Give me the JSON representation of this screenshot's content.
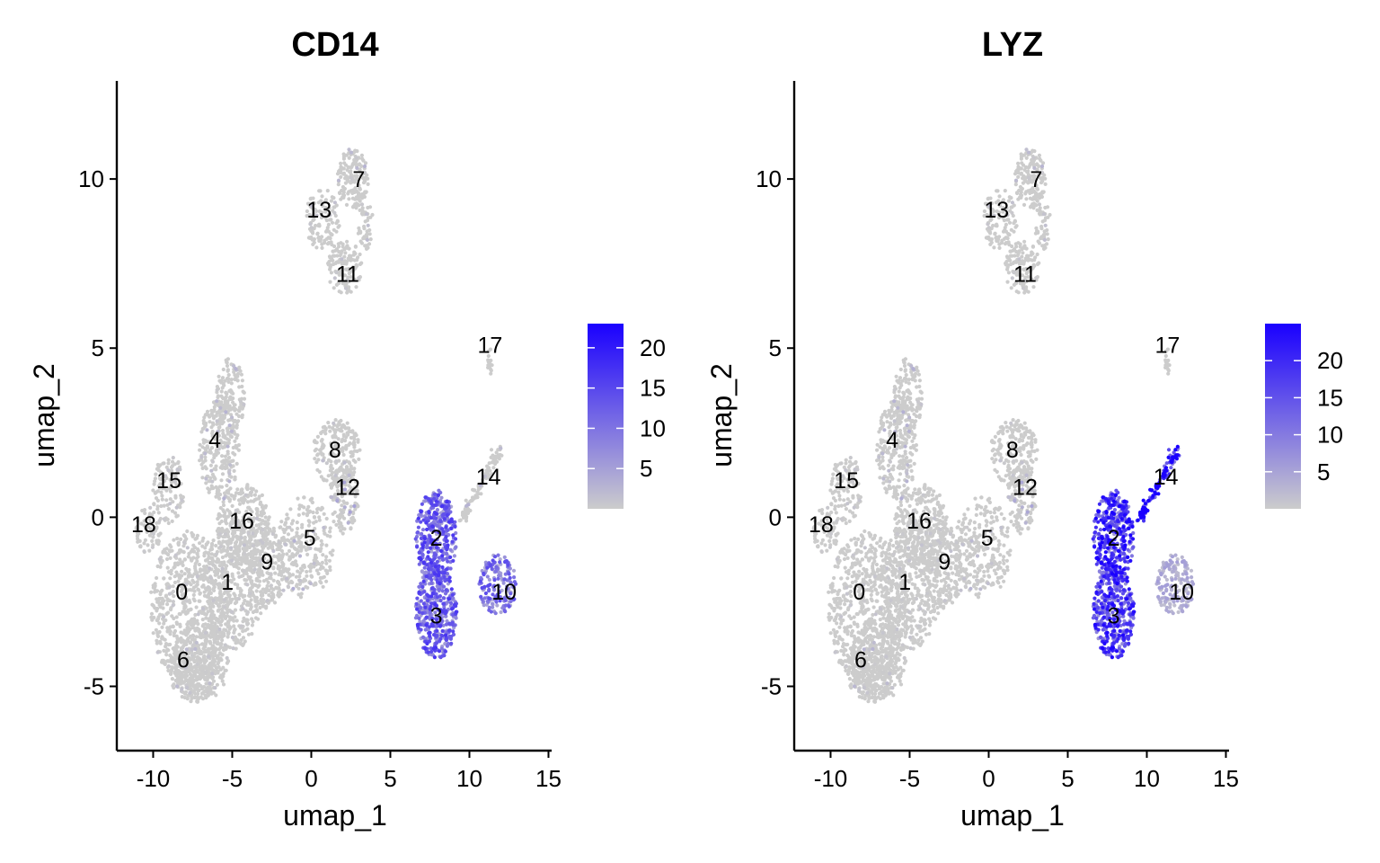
{
  "chart_data": [
    {
      "type": "scatter",
      "title": "CD14",
      "xlabel": "umap_1",
      "ylabel": "umap_2",
      "xlim": [
        -12.3,
        15.2
      ],
      "ylim": [
        -6.9,
        12.9
      ],
      "xticks": [
        -10,
        -5,
        0,
        5,
        10,
        15
      ],
      "yticks": [
        -5,
        0,
        5,
        10
      ],
      "grid": false,
      "legend": "right",
      "colorbar": {
        "ticks": [
          5,
          10,
          15,
          20
        ],
        "min": 0,
        "max": 23,
        "low_color": "#cccccc",
        "high_color": "#1a00ff"
      },
      "cluster_labels": [
        {
          "label": "0",
          "x": -8.2,
          "y": -2.2
        },
        {
          "label": "1",
          "x": -5.3,
          "y": -1.9
        },
        {
          "label": "2",
          "x": 7.9,
          "y": -0.6
        },
        {
          "label": "3",
          "x": 7.9,
          "y": -2.9
        },
        {
          "label": "4",
          "x": -6.1,
          "y": 2.3
        },
        {
          "label": "5",
          "x": -0.1,
          "y": -0.6
        },
        {
          "label": "6",
          "x": -8.1,
          "y": -4.2
        },
        {
          "label": "7",
          "x": 3.0,
          "y": 10.0
        },
        {
          "label": "8",
          "x": 1.5,
          "y": 2.0
        },
        {
          "label": "9",
          "x": -2.8,
          "y": -1.3
        },
        {
          "label": "10",
          "x": 12.2,
          "y": -2.2
        },
        {
          "label": "11",
          "x": 2.3,
          "y": 7.2
        },
        {
          "label": "12",
          "x": 2.3,
          "y": 0.9
        },
        {
          "label": "13",
          "x": 0.5,
          "y": 9.1
        },
        {
          "label": "14",
          "x": 11.2,
          "y": 1.2
        },
        {
          "label": "15",
          "x": -9.0,
          "y": 1.1
        },
        {
          "label": "16",
          "x": -4.4,
          "y": -0.1
        },
        {
          "label": "17",
          "x": 11.3,
          "y": 5.1
        },
        {
          "label": "18",
          "x": -10.6,
          "y": -0.2
        }
      ],
      "expression_by_cluster": {
        "0": 0.3,
        "1": 0.3,
        "2": 10.5,
        "3": 10.5,
        "4": 0.8,
        "5": 1.0,
        "6": 0.6,
        "7": 0.8,
        "8": 0.5,
        "9": 0.4,
        "10": 9.0,
        "11": 0.5,
        "12": 1.5,
        "13": 0.4,
        "14": 1.0,
        "15": 0.3,
        "16": 0.3,
        "17": 0.2,
        "18": 0.2
      }
    },
    {
      "type": "scatter",
      "title": "LYZ",
      "xlabel": "umap_1",
      "ylabel": "umap_2",
      "xlim": [
        -12.3,
        15.2
      ],
      "ylim": [
        -6.9,
        12.9
      ],
      "xticks": [
        -10,
        -5,
        0,
        5,
        10,
        15
      ],
      "yticks": [
        -5,
        0,
        5,
        10
      ],
      "grid": false,
      "legend": "right",
      "colorbar": {
        "ticks": [
          5,
          10,
          15,
          20
        ],
        "min": 0,
        "max": 25,
        "low_color": "#cccccc",
        "high_color": "#1a00ff"
      },
      "cluster_labels": [
        {
          "label": "0",
          "x": -8.2,
          "y": -2.2
        },
        {
          "label": "1",
          "x": -5.3,
          "y": -1.9
        },
        {
          "label": "2",
          "x": 7.9,
          "y": -0.6
        },
        {
          "label": "3",
          "x": 7.9,
          "y": -2.9
        },
        {
          "label": "4",
          "x": -6.1,
          "y": 2.3
        },
        {
          "label": "5",
          "x": -0.1,
          "y": -0.6
        },
        {
          "label": "6",
          "x": -8.1,
          "y": -4.2
        },
        {
          "label": "7",
          "x": 3.0,
          "y": 10.0
        },
        {
          "label": "8",
          "x": 1.5,
          "y": 2.0
        },
        {
          "label": "9",
          "x": -2.8,
          "y": -1.3
        },
        {
          "label": "10",
          "x": 12.2,
          "y": -2.2
        },
        {
          "label": "11",
          "x": 2.3,
          "y": 7.2
        },
        {
          "label": "12",
          "x": 2.3,
          "y": 0.9
        },
        {
          "label": "13",
          "x": 0.5,
          "y": 9.1
        },
        {
          "label": "14",
          "x": 11.2,
          "y": 1.2
        },
        {
          "label": "15",
          "x": -9.0,
          "y": 1.1
        },
        {
          "label": "16",
          "x": -4.4,
          "y": -0.1
        },
        {
          "label": "17",
          "x": 11.3,
          "y": 5.1
        },
        {
          "label": "18",
          "x": -10.6,
          "y": -0.2
        }
      ],
      "expression_by_cluster": {
        "0": 0.3,
        "1": 0.3,
        "2": 16.0,
        "3": 15.0,
        "4": 1.0,
        "5": 0.8,
        "6": 0.8,
        "7": 0.8,
        "8": 0.4,
        "9": 0.4,
        "10": 3.5,
        "11": 0.4,
        "12": 1.5,
        "13": 0.4,
        "14": 20.0,
        "15": 0.3,
        "16": 0.3,
        "17": 0.8,
        "18": 0.2
      }
    }
  ]
}
